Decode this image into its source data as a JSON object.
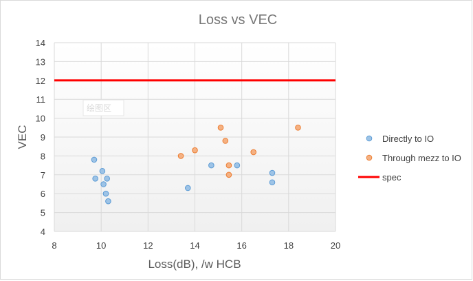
{
  "chart_data": {
    "type": "scatter",
    "title": "Loss vs VEC",
    "xlabel": "Loss(dB), /w HCB",
    "ylabel": "VEC",
    "xlim": [
      8,
      20
    ],
    "ylim": [
      4,
      14
    ],
    "xticks": [
      "8",
      "10",
      "12",
      "14",
      "16",
      "18",
      "20"
    ],
    "yticks": [
      "4",
      "5",
      "6",
      "7",
      "8",
      "9",
      "10",
      "11",
      "12",
      "13",
      "14"
    ],
    "grid": true,
    "legend_position": "right",
    "series": [
      {
        "name": "Directly to IO",
        "color": "#5b9bd5",
        "points": [
          {
            "x": 9.7,
            "y": 7.8
          },
          {
            "x": 9.75,
            "y": 6.8
          },
          {
            "x": 10.05,
            "y": 7.2
          },
          {
            "x": 10.1,
            "y": 6.5
          },
          {
            "x": 10.2,
            "y": 6.0
          },
          {
            "x": 10.25,
            "y": 6.8
          },
          {
            "x": 10.3,
            "y": 5.6
          },
          {
            "x": 13.7,
            "y": 6.3
          },
          {
            "x": 14.7,
            "y": 7.5
          },
          {
            "x": 15.8,
            "y": 7.5
          },
          {
            "x": 17.3,
            "y": 7.1
          },
          {
            "x": 17.3,
            "y": 6.6
          }
        ]
      },
      {
        "name": "Through mezz to IO",
        "color": "#ed7d31",
        "points": [
          {
            "x": 13.4,
            "y": 8.0
          },
          {
            "x": 14.0,
            "y": 8.3
          },
          {
            "x": 15.1,
            "y": 9.5
          },
          {
            "x": 15.3,
            "y": 8.8
          },
          {
            "x": 15.45,
            "y": 7.5
          },
          {
            "x": 15.45,
            "y": 7.0
          },
          {
            "x": 16.5,
            "y": 8.2
          },
          {
            "x": 18.4,
            "y": 9.5
          }
        ]
      }
    ],
    "reference_lines": [
      {
        "name": "spec",
        "y": 12,
        "color": "#ff0000"
      }
    ],
    "annotations": [
      {
        "text": "绘图区"
      }
    ]
  }
}
